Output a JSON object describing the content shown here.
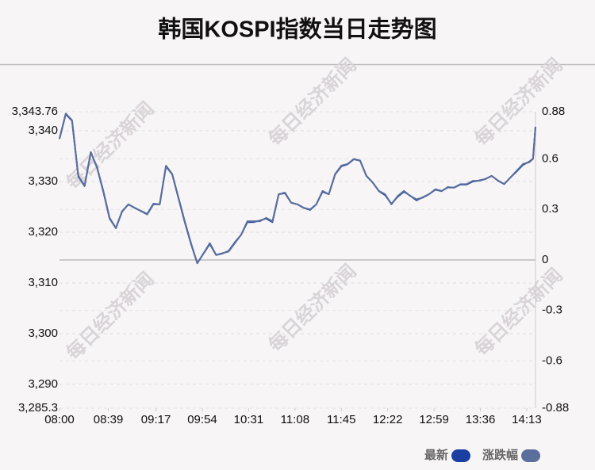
{
  "chart_data": {
    "type": "line",
    "title": "韩国KOSPI指数当日走势图",
    "watermark": "每日经济新闻",
    "x": [
      "08:00",
      "08:05",
      "08:10",
      "08:15",
      "08:20",
      "08:25",
      "08:30",
      "08:35",
      "08:40",
      "08:45",
      "08:50",
      "08:55",
      "09:00",
      "09:05",
      "09:10",
      "09:15",
      "09:20",
      "09:25",
      "09:30",
      "09:35",
      "09:40",
      "09:45",
      "09:50",
      "09:55",
      "10:00",
      "10:05",
      "10:10",
      "10:15",
      "10:20",
      "10:25",
      "10:30",
      "10:35",
      "10:40",
      "10:45",
      "10:50",
      "10:55",
      "11:00",
      "11:05",
      "11:10",
      "11:15",
      "11:20",
      "11:25",
      "11:30",
      "11:35",
      "11:40",
      "11:45",
      "11:50",
      "11:55",
      "12:00",
      "12:05",
      "12:10",
      "12:15",
      "12:20",
      "12:25",
      "12:30",
      "12:35",
      "12:40",
      "12:45",
      "12:50",
      "12:55",
      "13:00",
      "13:05",
      "13:10",
      "13:15",
      "13:20",
      "13:25",
      "13:30",
      "13:35",
      "13:40",
      "13:45",
      "13:50",
      "13:55",
      "14:00",
      "14:05",
      "14:10",
      "14:15",
      "14:18",
      "14:20"
    ],
    "series": [
      {
        "name": "最新",
        "color": "#1a3fa0",
        "values": [
          3338.4,
          3343.3,
          3342.0,
          3331.0,
          3329.1,
          3335.8,
          3332.7,
          3328.0,
          3322.7,
          3320.8,
          3324.1,
          3325.5,
          3324.8,
          3324.2,
          3323.6,
          3325.6,
          3325.5,
          3333.0,
          3331.4,
          3326.7,
          3322.0,
          3317.7,
          3313.9,
          3315.8,
          3317.7,
          3315.5,
          3315.8,
          3316.3,
          3318.0,
          3319.5,
          3322.0,
          3322.0,
          3322.3,
          3322.7,
          3322.0,
          3327.5,
          3327.7,
          3325.8,
          3325.5,
          3324.8,
          3324.4,
          3325.5,
          3328.0,
          3327.5,
          3331.4,
          3333.0,
          3333.4,
          3334.4,
          3334.1,
          3331.1,
          3329.8,
          3328.1,
          3327.3,
          3325.6,
          3327.0,
          3328.0,
          3327.2,
          3326.3,
          3326.9,
          3327.5,
          3328.4,
          3328.1,
          3328.9,
          3328.8,
          3329.4,
          3329.4,
          3330.0,
          3330.2,
          3330.5,
          3331.1,
          3330.2,
          3329.5,
          3330.8,
          3332.0,
          3333.3,
          3333.9,
          3334.5,
          3340.8
        ]
      },
      {
        "name": "涨跌幅",
        "color": "#5a6f9c",
        "axis": "y2",
        "values": [
          0.72,
          0.87,
          0.83,
          0.5,
          0.44,
          0.64,
          0.55,
          0.41,
          0.25,
          0.19,
          0.29,
          0.33,
          0.31,
          0.29,
          0.27,
          0.33,
          0.33,
          0.56,
          0.51,
          0.37,
          0.23,
          0.1,
          -0.02,
          0.04,
          0.1,
          0.03,
          0.04,
          0.05,
          0.1,
          0.15,
          0.23,
          0.23,
          0.23,
          0.25,
          0.23,
          0.39,
          0.4,
          0.34,
          0.33,
          0.31,
          0.3,
          0.33,
          0.41,
          0.39,
          0.51,
          0.56,
          0.57,
          0.6,
          0.59,
          0.5,
          0.46,
          0.41,
          0.39,
          0.33,
          0.38,
          0.41,
          0.38,
          0.36,
          0.37,
          0.39,
          0.42,
          0.41,
          0.43,
          0.43,
          0.45,
          0.45,
          0.47,
          0.47,
          0.48,
          0.5,
          0.47,
          0.45,
          0.49,
          0.53,
          0.57,
          0.58,
          0.6,
          0.79
        ]
      }
    ],
    "xlim": [
      "08:00",
      "14:20"
    ],
    "xticks": [
      "08:00",
      "08:39",
      "09:17",
      "09:54",
      "10:31",
      "11:08",
      "11:45",
      "12:22",
      "12:59",
      "13:36",
      "14:13"
    ],
    "ylim": [
      3285.3,
      3343.76
    ],
    "yticks": [
      {
        "value": 3285.3,
        "label": "3,285.3"
      },
      {
        "value": 3290,
        "label": "3,290"
      },
      {
        "value": 3300,
        "label": "3,300"
      },
      {
        "value": 3310,
        "label": "3,310"
      },
      {
        "value": 3320,
        "label": "3,320"
      },
      {
        "value": 3330,
        "label": "3,330"
      },
      {
        "value": 3340,
        "label": "3,340"
      },
      {
        "value": 3343.76,
        "label": "3,343.76"
      }
    ],
    "y2lim": [
      -0.88,
      0.88
    ],
    "y2ticks": [
      -0.88,
      -0.6,
      -0.3,
      0,
      0.3,
      0.6,
      0.88
    ],
    "grid": true
  }
}
